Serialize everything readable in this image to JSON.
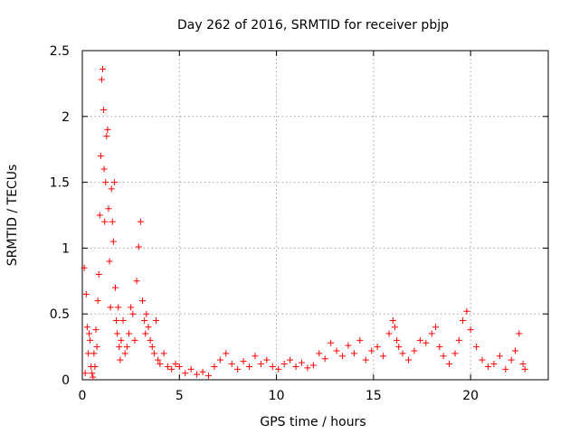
{
  "chart_data": {
    "type": "scatter",
    "title": "Day 262 of 2016, SRMTID for receiver pbjp",
    "xlabel": "GPS time / hours",
    "ylabel": "SRMTID / TECUs",
    "xlim": [
      0,
      24
    ],
    "ylim": [
      0,
      2.5
    ],
    "x_ticks": [
      0,
      5,
      10,
      15,
      20
    ],
    "y_ticks": [
      0,
      0.5,
      1,
      1.5,
      2,
      2.5
    ],
    "x_tick_labels": [
      "0",
      "5",
      "10",
      "15",
      "20"
    ],
    "y_tick_labels": [
      "0",
      "0.5",
      "1",
      "1.5",
      "2",
      "2.5"
    ],
    "grid": true,
    "marker": "+",
    "point_color": "#ff0000",
    "series": [
      {
        "name": "pbjp",
        "x": [
          0.1,
          0.15,
          0.2,
          0.25,
          0.3,
          0.35,
          0.4,
          0.45,
          0.5,
          0.55,
          0.6,
          0.65,
          0.7,
          0.75,
          0.8,
          0.85,
          0.9,
          0.95,
          1.0,
          1.05,
          1.1,
          1.12,
          1.15,
          1.2,
          1.25,
          1.3,
          1.35,
          1.4,
          1.45,
          1.5,
          1.55,
          1.6,
          1.65,
          1.7,
          1.75,
          1.8,
          1.85,
          1.9,
          1.95,
          2.0,
          2.1,
          2.2,
          2.3,
          2.4,
          2.5,
          2.6,
          2.7,
          2.8,
          2.9,
          3.0,
          3.1,
          3.2,
          3.25,
          3.3,
          3.4,
          3.5,
          3.6,
          3.7,
          3.8,
          3.9,
          4.0,
          4.2,
          4.4,
          4.6,
          4.8,
          5.0,
          5.3,
          5.6,
          5.9,
          6.2,
          6.5,
          6.8,
          7.1,
          7.4,
          7.7,
          8.0,
          8.3,
          8.6,
          8.9,
          9.2,
          9.5,
          9.8,
          10.1,
          10.4,
          10.7,
          11.0,
          11.3,
          11.6,
          11.9,
          12.2,
          12.5,
          12.8,
          13.1,
          13.4,
          13.7,
          14.0,
          14.3,
          14.6,
          14.9,
          15.2,
          15.5,
          15.8,
          16.0,
          16.1,
          16.2,
          16.3,
          16.5,
          16.8,
          17.1,
          17.4,
          17.7,
          18.0,
          18.2,
          18.4,
          18.6,
          18.9,
          19.2,
          19.4,
          19.6,
          19.8,
          20.0,
          20.3,
          20.6,
          20.9,
          21.2,
          21.5,
          21.8,
          22.1,
          22.3,
          22.5,
          22.7,
          22.8
        ],
        "y": [
          0.85,
          0.05,
          0.65,
          0.4,
          0.2,
          0.35,
          0.3,
          0.1,
          0.05,
          0.02,
          0.2,
          0.1,
          0.38,
          0.25,
          0.6,
          0.8,
          1.25,
          1.7,
          2.28,
          2.36,
          2.05,
          1.6,
          1.2,
          1.5,
          1.85,
          1.9,
          1.3,
          0.9,
          0.55,
          1.45,
          1.2,
          1.05,
          1.5,
          0.7,
          0.45,
          0.35,
          0.55,
          0.25,
          0.15,
          0.3,
          0.45,
          0.2,
          0.25,
          0.35,
          0.55,
          0.5,
          0.3,
          0.75,
          1.01,
          1.2,
          0.6,
          0.45,
          0.35,
          0.5,
          0.4,
          0.3,
          0.25,
          0.2,
          0.45,
          0.15,
          0.12,
          0.2,
          0.1,
          0.08,
          0.12,
          0.1,
          0.05,
          0.08,
          0.04,
          0.06,
          0.03,
          0.1,
          0.15,
          0.2,
          0.12,
          0.08,
          0.14,
          0.1,
          0.18,
          0.12,
          0.15,
          0.1,
          0.08,
          0.12,
          0.15,
          0.1,
          0.13,
          0.09,
          0.11,
          0.2,
          0.16,
          0.28,
          0.22,
          0.18,
          0.26,
          0.2,
          0.3,
          0.15,
          0.22,
          0.25,
          0.18,
          0.35,
          0.45,
          0.4,
          0.3,
          0.25,
          0.2,
          0.15,
          0.22,
          0.3,
          0.28,
          0.35,
          0.4,
          0.25,
          0.18,
          0.12,
          0.2,
          0.3,
          0.45,
          0.52,
          0.38,
          0.25,
          0.15,
          0.1,
          0.12,
          0.18,
          0.08,
          0.15,
          0.22,
          0.35,
          0.12,
          0.08
        ]
      }
    ]
  }
}
